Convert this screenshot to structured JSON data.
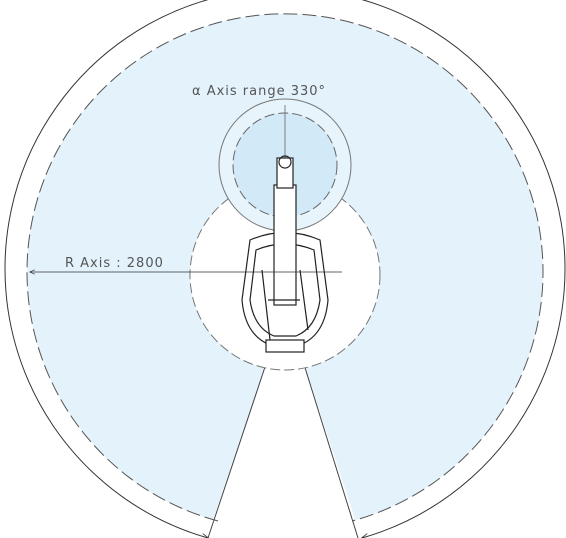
{
  "labels": {
    "alpha_range": "α Axis range 330°",
    "r_axis": "R Axis : 2800"
  }
}
